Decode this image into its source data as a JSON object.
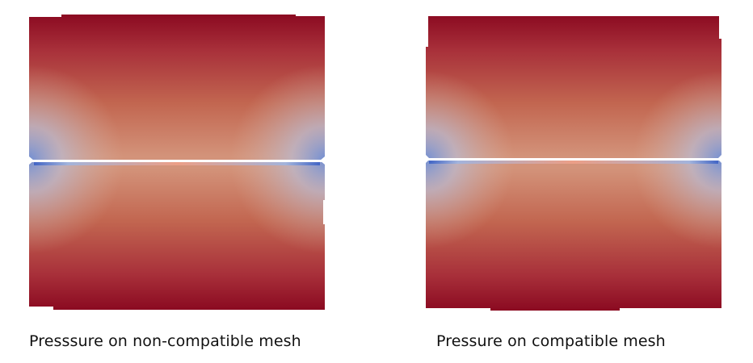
{
  "panels": [
    {
      "caption": "Presssure on non-compatible mesh",
      "mesh": "non-compatible"
    },
    {
      "caption": "Pressure on compatible mesh",
      "mesh": "compatible"
    }
  ],
  "colors": {
    "high": "#8b0a21",
    "mid": "#c9856a",
    "center": "#e89a7e",
    "low": "#3a5fc4",
    "crack": "#ffffff"
  }
}
